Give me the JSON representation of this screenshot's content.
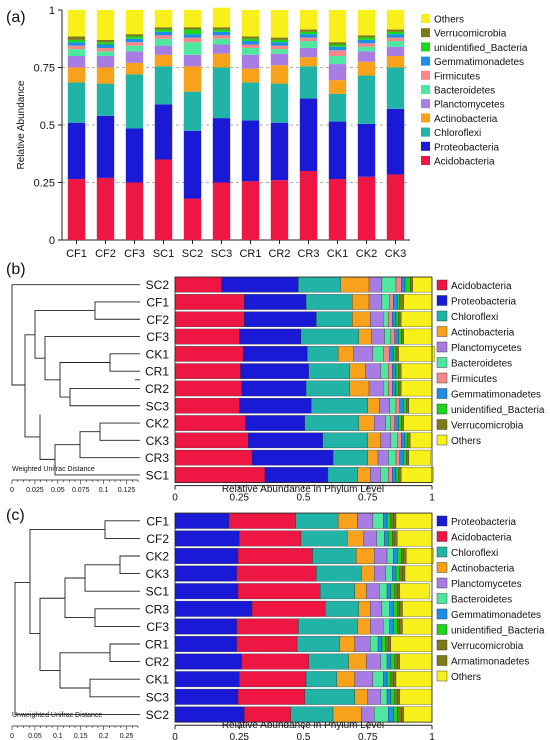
{
  "chart_data": [
    {
      "panel": "(a)",
      "type": "bar",
      "stacked": true,
      "ylabel": "Relative Abundance",
      "xlabel": "",
      "ylim": [
        0,
        1
      ],
      "yticks": [
        "0",
        "0.25",
        "0.5",
        "0.75",
        "1"
      ],
      "grid": "dashed at 0.25, 0.5, 0.75",
      "legend_position": "right",
      "categories": [
        "CF1",
        "CF2",
        "CF3",
        "SC1",
        "SC2",
        "SC3",
        "CR1",
        "CR2",
        "CR3",
        "CK1",
        "CK2",
        "CK3"
      ],
      "series": [
        {
          "name": "Acidobacteria",
          "values": [
            0.265,
            0.27,
            0.25,
            0.35,
            0.18,
            0.25,
            0.255,
            0.26,
            0.3,
            0.265,
            0.275,
            0.285
          ]
        },
        {
          "name": "Proteobacteria",
          "values": [
            0.245,
            0.27,
            0.235,
            0.24,
            0.295,
            0.28,
            0.265,
            0.25,
            0.315,
            0.25,
            0.23,
            0.285
          ]
        },
        {
          "name": "Chloroflexi",
          "values": [
            0.175,
            0.14,
            0.235,
            0.165,
            0.17,
            0.22,
            0.165,
            0.17,
            0.14,
            0.12,
            0.21,
            0.18
          ]
        },
        {
          "name": "Actinobacteria",
          "values": [
            0.065,
            0.07,
            0.05,
            0.05,
            0.11,
            0.06,
            0.06,
            0.08,
            0.04,
            0.06,
            0.06,
            0.05
          ]
        },
        {
          "name": "Planctomycetes",
          "values": [
            0.05,
            0.05,
            0.05,
            0.04,
            0.05,
            0.04,
            0.06,
            0.05,
            0.04,
            0.07,
            0.045,
            0.04
          ]
        },
        {
          "name": "Bacteroidetes",
          "values": [
            0.03,
            0.02,
            0.025,
            0.03,
            0.055,
            0.025,
            0.03,
            0.02,
            0.03,
            0.035,
            0.02,
            0.025
          ]
        },
        {
          "name": "Firmicutes",
          "values": [
            0.015,
            0.015,
            0.015,
            0.015,
            0.02,
            0.015,
            0.015,
            0.015,
            0.015,
            0.025,
            0.015,
            0.015
          ]
        },
        {
          "name": "Gemmatimonadetes",
          "values": [
            0.015,
            0.015,
            0.015,
            0.015,
            0.015,
            0.015,
            0.015,
            0.015,
            0.015,
            0.015,
            0.015,
            0.015
          ]
        },
        {
          "name": "unidentified_Bacteria",
          "values": [
            0.01,
            0.01,
            0.01,
            0.01,
            0.02,
            0.01,
            0.01,
            0.01,
            0.01,
            0.01,
            0.01,
            0.01
          ]
        },
        {
          "name": "Verrucomicrobia",
          "values": [
            0.015,
            0.01,
            0.01,
            0.01,
            0.01,
            0.01,
            0.01,
            0.01,
            0.01,
            0.01,
            0.01,
            0.01
          ]
        },
        {
          "name": "Others",
          "values": [
            0.115,
            0.13,
            0.105,
            0.075,
            0.075,
            0.085,
            0.115,
            0.12,
            0.085,
            0.14,
            0.11,
            0.085
          ]
        }
      ]
    },
    {
      "panel": "(b)",
      "type": "bar",
      "orientation": "horizontal",
      "stacked": true,
      "xlabel": "Relative Abundance in Phylum Level",
      "xlim": [
        0,
        1
      ],
      "xticks": [
        "0",
        "0.25",
        "0.5",
        "0.75",
        "1"
      ],
      "legend_position": "right",
      "dendrogram_label": "Weighted Unifrac Distance",
      "dendrogram_ticks": [
        "0",
        "0.025",
        "0.05",
        "0.075",
        "0.1",
        "0.125"
      ],
      "categories": [
        "SC2",
        "CF1",
        "CF2",
        "CF3",
        "CK1",
        "CR1",
        "CR2",
        "SC3",
        "CK2",
        "CK3",
        "CR3",
        "SC1"
      ],
      "series": [
        {
          "name": "Acidobacteria",
          "values": [
            0.18,
            0.27,
            0.27,
            0.25,
            0.265,
            0.255,
            0.26,
            0.25,
            0.275,
            0.285,
            0.3,
            0.35
          ]
        },
        {
          "name": "Proteobacteria",
          "values": [
            0.3,
            0.24,
            0.28,
            0.24,
            0.25,
            0.265,
            0.25,
            0.28,
            0.23,
            0.29,
            0.315,
            0.245
          ]
        },
        {
          "name": "Chloroflexi",
          "values": [
            0.165,
            0.18,
            0.14,
            0.225,
            0.12,
            0.16,
            0.17,
            0.22,
            0.21,
            0.175,
            0.135,
            0.115
          ]
        },
        {
          "name": "Actinobacteria",
          "values": [
            0.11,
            0.065,
            0.07,
            0.05,
            0.06,
            0.06,
            0.075,
            0.045,
            0.06,
            0.05,
            0.04,
            0.05
          ]
        },
        {
          "name": "Planctomycetes",
          "values": [
            0.05,
            0.05,
            0.05,
            0.05,
            0.075,
            0.06,
            0.055,
            0.04,
            0.045,
            0.04,
            0.04,
            0.04
          ]
        },
        {
          "name": "Bacteroidetes",
          "values": [
            0.055,
            0.03,
            0.02,
            0.025,
            0.04,
            0.03,
            0.02,
            0.025,
            0.02,
            0.025,
            0.03,
            0.03
          ]
        },
        {
          "name": "Firmicutes",
          "values": [
            0.02,
            0.015,
            0.015,
            0.015,
            0.025,
            0.015,
            0.015,
            0.015,
            0.015,
            0.015,
            0.015,
            0.015
          ]
        },
        {
          "name": "Gemmatimonadetes",
          "values": [
            0.015,
            0.015,
            0.015,
            0.015,
            0.015,
            0.015,
            0.015,
            0.015,
            0.015,
            0.015,
            0.015,
            0.015
          ]
        },
        {
          "name": "unidentified_Bacteria",
          "values": [
            0.02,
            0.01,
            0.01,
            0.01,
            0.01,
            0.01,
            0.01,
            0.01,
            0.01,
            0.01,
            0.01,
            0.01
          ]
        },
        {
          "name": "Verrucomicrobia",
          "values": [
            0.01,
            0.015,
            0.01,
            0.01,
            0.01,
            0.01,
            0.01,
            0.01,
            0.01,
            0.01,
            0.01,
            0.01
          ]
        },
        {
          "name": "Others",
          "values": [
            0.075,
            0.11,
            0.12,
            0.11,
            0.14,
            0.12,
            0.12,
            0.09,
            0.11,
            0.085,
            0.085,
            0.125
          ]
        }
      ]
    },
    {
      "panel": "(c)",
      "type": "bar",
      "orientation": "horizontal",
      "stacked": true,
      "xlabel": "Relative Abundance in Phylum Level",
      "xlim": [
        0,
        1
      ],
      "xticks": [
        "0",
        "0.25",
        "0.5",
        "0.75",
        "1"
      ],
      "legend_position": "right",
      "dendrogram_label": "Unweighted Unifrac Distance",
      "dendrogram_ticks": [
        "0",
        "0.05",
        "0.1",
        "0.15",
        "0.2",
        "0.25"
      ],
      "categories": [
        "CF1",
        "CF2",
        "CK2",
        "CK3",
        "SC1",
        "CR3",
        "CF3",
        "CR1",
        "CR2",
        "CK1",
        "SC3",
        "SC2"
      ],
      "series": [
        {
          "name": "Proteobacteria",
          "values": [
            0.21,
            0.25,
            0.245,
            0.24,
            0.245,
            0.3,
            0.24,
            0.24,
            0.26,
            0.25,
            0.245,
            0.27
          ]
        },
        {
          "name": "Acidobacteria",
          "values": [
            0.26,
            0.24,
            0.29,
            0.31,
            0.32,
            0.285,
            0.24,
            0.235,
            0.26,
            0.26,
            0.26,
            0.18
          ]
        },
        {
          "name": "Chloroflexi",
          "values": [
            0.165,
            0.18,
            0.17,
            0.175,
            0.135,
            0.13,
            0.23,
            0.165,
            0.155,
            0.12,
            0.195,
            0.165
          ]
        },
        {
          "name": "Actinobacteria",
          "values": [
            0.075,
            0.065,
            0.07,
            0.05,
            0.045,
            0.045,
            0.05,
            0.06,
            0.07,
            0.07,
            0.05,
            0.11
          ]
        },
        {
          "name": "Planctomycetes",
          "values": [
            0.06,
            0.05,
            0.05,
            0.045,
            0.05,
            0.045,
            0.05,
            0.06,
            0.055,
            0.07,
            0.05,
            0.05
          ]
        },
        {
          "name": "Bacteroidetes",
          "values": [
            0.04,
            0.03,
            0.025,
            0.025,
            0.03,
            0.03,
            0.025,
            0.03,
            0.025,
            0.04,
            0.025,
            0.055
          ]
        },
        {
          "name": "Gemmatimonadetes",
          "values": [
            0.015,
            0.015,
            0.015,
            0.015,
            0.015,
            0.015,
            0.015,
            0.015,
            0.015,
            0.015,
            0.015,
            0.02
          ]
        },
        {
          "name": "unidentified_Bacteria",
          "values": [
            0.015,
            0.015,
            0.015,
            0.015,
            0.015,
            0.015,
            0.015,
            0.015,
            0.015,
            0.015,
            0.015,
            0.015
          ]
        },
        {
          "name": "Verrucomicrobia",
          "values": [
            0.01,
            0.01,
            0.01,
            0.01,
            0.01,
            0.01,
            0.01,
            0.01,
            0.01,
            0.01,
            0.01,
            0.015
          ]
        },
        {
          "name": "Armatimonadetes",
          "values": [
            0.01,
            0.01,
            0.01,
            0.01,
            0.01,
            0.01,
            0.01,
            0.01,
            0.01,
            0.01,
            0.01,
            0.01
          ]
        },
        {
          "name": "Others",
          "values": [
            0.14,
            0.135,
            0.105,
            0.105,
            0.115,
            0.115,
            0.115,
            0.16,
            0.125,
            0.14,
            0.125,
            0.11
          ]
        }
      ]
    }
  ],
  "colors": {
    "Acidobacteria": "#ee1744",
    "Proteobacteria": "#1a1ad6",
    "Chloroflexi": "#21b3a6",
    "Actinobacteria": "#f7a21a",
    "Planctomycetes": "#a87de3",
    "Bacteroidetes": "#4fe6a0",
    "Firmicutes": "#f7868a",
    "Gemmatimonadetes": "#1e8ee8",
    "unidentified_Bacteria": "#1bd61b",
    "Verrucomicrobia": "#7d7a1a",
    "Armatimonadetes": "#7d7a1a",
    "Others": "#f7f01a"
  },
  "legend_a": [
    "Others",
    "Verrucomicrobia",
    "unidentified_Bacteria",
    "Gemmatimonadetes",
    "Firmicutes",
    "Bacteroidetes",
    "Planctomycetes",
    "Actinobacteria",
    "Chloroflexi",
    "Proteobacteria",
    "Acidobacteria"
  ],
  "legend_b": [
    "Acidobacteria",
    "Proteobacteria",
    "Chloroflexi",
    "Actinobacteria",
    "Planctomycetes",
    "Bacteroidetes",
    "Firmicutes",
    "Gemmatimonadetes",
    "unidentified_Bacteria",
    "Verrucomicrobia",
    "Others"
  ],
  "legend_c": [
    "Proteobacteria",
    "Acidobacteria",
    "Chloroflexi",
    "Actinobacteria",
    "Planctomycetes",
    "Bacteroidetes",
    "Gemmatimonadetes",
    "unidentified_Bacteria",
    "Verrucomicrobia",
    "Armatimonadetes",
    "Others"
  ]
}
